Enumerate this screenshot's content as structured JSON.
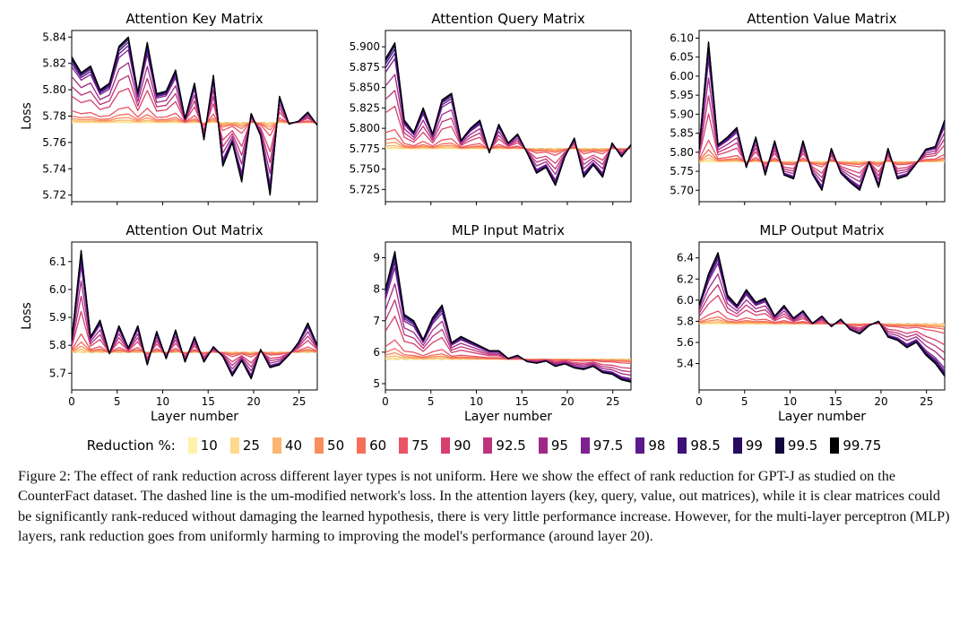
{
  "figure_label": "Figure 2:",
  "caption_text": "The effect of rank reduction across different layer types is not uniform. Here we show the effect of rank reduction for GPT-J as studied on the CounterFact dataset. The dashed line is the um-modified network's loss. In the attention layers (key, query, value, out matrices), while it is clear matrices could be significantly rank-reduced without damaging the learned hypothesis, there is very little performance increase. However, for the multi-layer perceptron (MLP) layers, rank reduction goes from uniformly harming to improving the model's performance (around layer 20).",
  "legend_title": "Reduction %:",
  "series": [
    {
      "label": "10",
      "color": "#fef2a8"
    },
    {
      "label": "25",
      "color": "#fcd98c"
    },
    {
      "label": "40",
      "color": "#fbb56f"
    },
    {
      "label": "50",
      "color": "#f98e5c"
    },
    {
      "label": "60",
      "color": "#f4705b"
    },
    {
      "label": "75",
      "color": "#e85464"
    },
    {
      "label": "90",
      "color": "#d6406e"
    },
    {
      "label": "92.5",
      "color": "#bd337b"
    },
    {
      "label": "95",
      "color": "#9f2a86"
    },
    {
      "label": "97.5",
      "color": "#7e2290"
    },
    {
      "label": "98",
      "color": "#5b1a8b"
    },
    {
      "label": "98.5",
      "color": "#3d1177"
    },
    {
      "label": "99",
      "color": "#260b5e"
    },
    {
      "label": "99.5",
      "color": "#12063d"
    },
    {
      "label": "99.75",
      "color": "#000004"
    }
  ],
  "xlabel": "Layer number",
  "ylabel": "Loss",
  "xticks": [
    0,
    5,
    10,
    15,
    20,
    25
  ],
  "xlim": [
    0,
    27
  ],
  "n_layers_xmax": 27,
  "baseline": 5.775,
  "baseline_style": {
    "color": "#000000",
    "dash": "6,4",
    "width": 1.2
  },
  "grid_color": "#ffffff",
  "axis_color": "#000000",
  "title_fontsize": 15,
  "tick_fontsize": 12,
  "label_fontsize": 14,
  "line_width": 1.3,
  "panels": [
    {
      "title": "Attention Key Matrix",
      "ylim": [
        5.715,
        5.845
      ],
      "yticks": [
        5.72,
        5.74,
        5.76,
        5.78,
        5.8,
        5.82,
        5.84
      ],
      "base_shape": [
        5.825,
        5.813,
        5.818,
        5.8,
        5.805,
        5.833,
        5.84,
        5.798,
        5.836,
        5.797,
        5.799,
        5.815,
        5.778,
        5.805,
        5.762,
        5.811,
        5.742,
        5.76,
        5.73,
        5.782,
        5.765,
        5.72,
        5.795,
        5.774,
        5.776,
        5.783,
        5.773
      ],
      "amplitudes": [
        0.0,
        0.01,
        0.03,
        0.06,
        0.1,
        0.18,
        0.4,
        0.55,
        0.7,
        0.85,
        0.9,
        0.94,
        0.97,
        0.99,
        1.0
      ]
    },
    {
      "title": "Attention Query Matrix",
      "ylim": [
        5.71,
        5.92
      ],
      "yticks": [
        5.725,
        5.75,
        5.775,
        5.8,
        5.825,
        5.85,
        5.875,
        5.9
      ],
      "base_shape": [
        5.885,
        5.905,
        5.81,
        5.795,
        5.825,
        5.793,
        5.835,
        5.843,
        5.785,
        5.8,
        5.81,
        5.77,
        5.805,
        5.782,
        5.793,
        5.77,
        5.745,
        5.752,
        5.73,
        5.765,
        5.788,
        5.74,
        5.755,
        5.74,
        5.782,
        5.765,
        5.78
      ],
      "amplitudes": [
        0.0,
        0.01,
        0.03,
        0.06,
        0.1,
        0.18,
        0.4,
        0.55,
        0.7,
        0.85,
        0.9,
        0.94,
        0.97,
        0.99,
        1.0
      ]
    },
    {
      "title": "Attention Value Matrix",
      "ylim": [
        5.67,
        6.12
      ],
      "yticks": [
        5.7,
        5.75,
        5.8,
        5.85,
        5.9,
        5.95,
        6.0,
        6.05,
        6.1
      ],
      "base_shape": [
        5.81,
        6.09,
        5.82,
        5.84,
        5.865,
        5.76,
        5.84,
        5.74,
        5.83,
        5.74,
        5.73,
        5.83,
        5.742,
        5.7,
        5.81,
        5.745,
        5.72,
        5.7,
        5.775,
        5.708,
        5.81,
        5.73,
        5.738,
        5.77,
        5.808,
        5.815,
        5.885
      ],
      "amplitudes": [
        0.0,
        0.01,
        0.03,
        0.06,
        0.1,
        0.18,
        0.4,
        0.55,
        0.7,
        0.85,
        0.9,
        0.94,
        0.97,
        0.99,
        1.0
      ]
    },
    {
      "title": "Attention Out Matrix",
      "ylim": [
        5.64,
        6.17
      ],
      "yticks": [
        5.7,
        5.8,
        5.9,
        6.0,
        6.1
      ],
      "base_shape": [
        5.82,
        6.14,
        5.83,
        5.89,
        5.77,
        5.87,
        5.79,
        5.87,
        5.73,
        5.85,
        5.752,
        5.855,
        5.74,
        5.83,
        5.74,
        5.795,
        5.76,
        5.69,
        5.745,
        5.68,
        5.785,
        5.72,
        5.73,
        5.765,
        5.81,
        5.88,
        5.8
      ],
      "amplitudes": [
        0.0,
        0.01,
        0.03,
        0.06,
        0.1,
        0.18,
        0.4,
        0.55,
        0.7,
        0.85,
        0.9,
        0.94,
        0.97,
        0.99,
        1.0
      ]
    },
    {
      "title": "MLP Input Matrix",
      "ylim": [
        4.8,
        9.5
      ],
      "yticks": [
        5,
        6,
        7,
        8,
        9
      ],
      "base_shape": [
        8.0,
        9.2,
        7.2,
        7.0,
        6.4,
        7.1,
        7.5,
        6.3,
        6.5,
        6.35,
        6.2,
        6.05,
        6.05,
        5.8,
        5.9,
        5.7,
        5.65,
        5.72,
        5.55,
        5.63,
        5.5,
        5.45,
        5.55,
        5.35,
        5.3,
        5.12,
        5.05
      ],
      "amplitudes": [
        0.0,
        0.01,
        0.03,
        0.06,
        0.1,
        0.18,
        0.4,
        0.55,
        0.7,
        0.85,
        0.9,
        0.94,
        0.97,
        0.99,
        1.0
      ]
    },
    {
      "title": "MLP Output Matrix",
      "ylim": [
        5.15,
        6.55
      ],
      "yticks": [
        5.4,
        5.6,
        5.8,
        6.0,
        6.2,
        6.4
      ],
      "base_shape": [
        5.95,
        6.25,
        6.45,
        6.05,
        5.95,
        6.1,
        5.98,
        6.02,
        5.85,
        5.95,
        5.83,
        5.9,
        5.78,
        5.85,
        5.75,
        5.82,
        5.72,
        5.68,
        5.76,
        5.8,
        5.65,
        5.62,
        5.55,
        5.6,
        5.48,
        5.4,
        5.28
      ],
      "amplitudes": [
        0.0,
        0.01,
        0.03,
        0.06,
        0.1,
        0.18,
        0.4,
        0.55,
        0.7,
        0.85,
        0.9,
        0.94,
        0.97,
        0.99,
        1.0
      ]
    }
  ]
}
